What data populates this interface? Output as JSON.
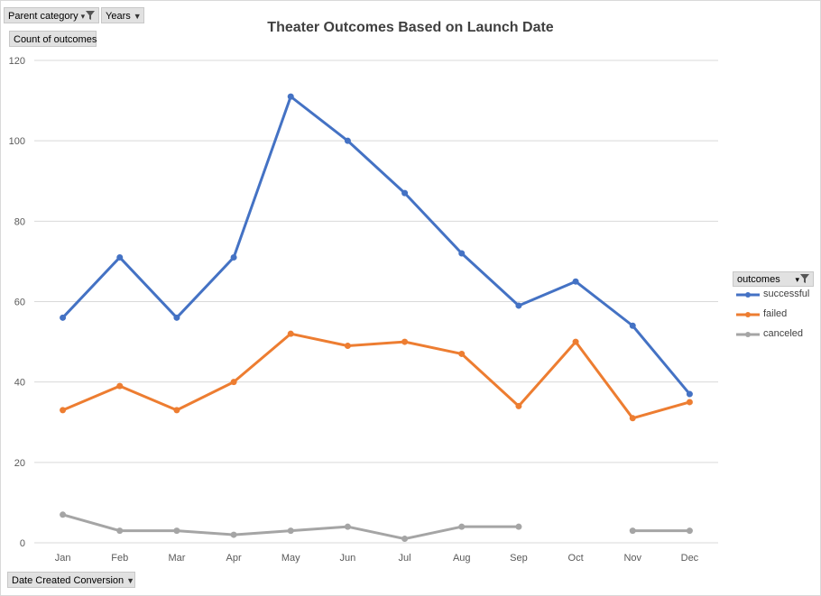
{
  "filters": {
    "parent_category": "Parent category",
    "years": "Years",
    "count_label": "Count of outcomes",
    "axis_field": "Date Created Conversion",
    "legend_field": "outcomes"
  },
  "chart_data": {
    "type": "line",
    "title": "Theater Outcomes Based on Launch Date",
    "xlabel": "",
    "ylabel": "",
    "categories": [
      "Jan",
      "Feb",
      "Mar",
      "Apr",
      "May",
      "Jun",
      "Jul",
      "Aug",
      "Sep",
      "Oct",
      "Nov",
      "Dec"
    ],
    "ylim": [
      0,
      120
    ],
    "yticks": [
      0,
      20,
      40,
      60,
      80,
      100,
      120
    ],
    "grid": true,
    "legend_position": "right",
    "series": [
      {
        "name": "successful",
        "color": "#4472c4",
        "values": [
          56,
          71,
          56,
          71,
          111,
          100,
          87,
          72,
          59,
          65,
          54,
          37
        ]
      },
      {
        "name": "failed",
        "color": "#ed7d31",
        "values": [
          33,
          39,
          33,
          40,
          52,
          49,
          50,
          47,
          34,
          50,
          31,
          35
        ]
      },
      {
        "name": "canceled",
        "color": "#a5a5a5",
        "values": [
          7,
          3,
          3,
          2,
          3,
          4,
          1,
          4,
          4,
          null,
          3,
          3
        ]
      }
    ]
  }
}
